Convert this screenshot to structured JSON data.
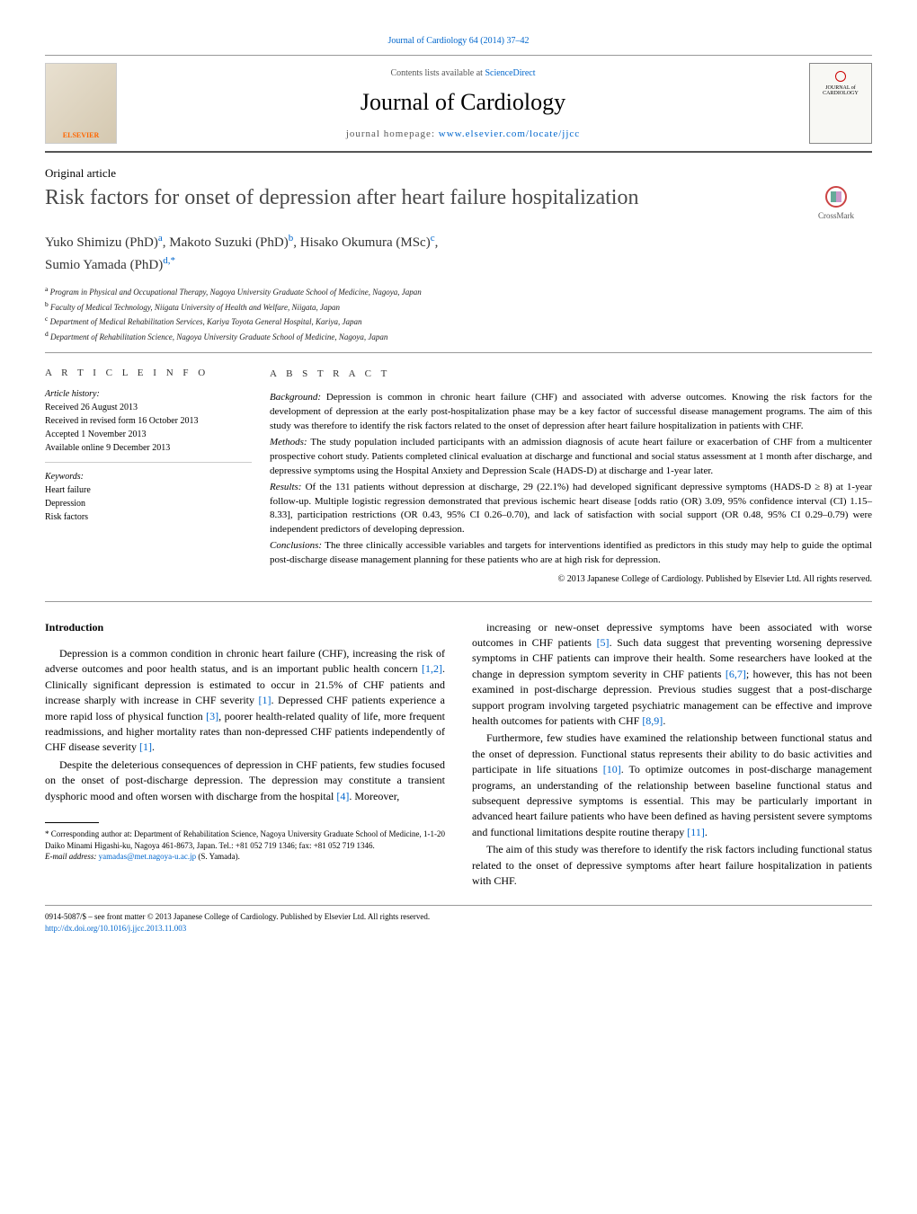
{
  "top_link": "Journal of Cardiology 64 (2014) 37–42",
  "header": {
    "publisher_logo": "ELSEVIER",
    "contents_prefix": "Contents lists available at ",
    "contents_link": "ScienceDirect",
    "journal_name": "Journal of Cardiology",
    "homepage_prefix": "journal homepage: ",
    "homepage_link": "www.elsevier.com/locate/jjcc",
    "cover_text": "JOURNAL of CARDIOLOGY"
  },
  "article_type": "Original article",
  "title": "Risk factors for onset of depression after heart failure hospitalization",
  "crossmark": "CrossMark",
  "authors_html": "Yuko Shimizu (PhD)<sup>a</sup>, Makoto Suzuki (PhD)<sup>b</sup>, Hisako Okumura (MSc)<sup>c</sup>,<br>Sumio Yamada (PhD)<sup>d,*</sup>",
  "affiliations": [
    "a Program in Physical and Occupational Therapy, Nagoya University Graduate School of Medicine, Nagoya, Japan",
    "b Faculty of Medical Technology, Niigata University of Health and Welfare, Niigata, Japan",
    "c Department of Medical Rehabilitation Services, Kariya Toyota General Hospital, Kariya, Japan",
    "d Department of Rehabilitation Science, Nagoya University Graduate School of Medicine, Nagoya, Japan"
  ],
  "info": {
    "heading": "A R T I C L E   I N F O",
    "history_label": "Article history:",
    "history": [
      "Received 26 August 2013",
      "Received in revised form 16 October 2013",
      "Accepted 1 November 2013",
      "Available online 9 December 2013"
    ],
    "keywords_label": "Keywords:",
    "keywords": [
      "Heart failure",
      "Depression",
      "Risk factors"
    ]
  },
  "abstract": {
    "heading": "A B S T R A C T",
    "sections": [
      {
        "label": "Background:",
        "text": " Depression is common in chronic heart failure (CHF) and associated with adverse outcomes. Knowing the risk factors for the development of depression at the early post-hospitalization phase may be a key factor of successful disease management programs. The aim of this study was therefore to identify the risk factors related to the onset of depression after heart failure hospitalization in patients with CHF."
      },
      {
        "label": "Methods:",
        "text": " The study population included participants with an admission diagnosis of acute heart failure or exacerbation of CHF from a multicenter prospective cohort study. Patients completed clinical evaluation at discharge and functional and social status assessment at 1 month after discharge, and depressive symptoms using the Hospital Anxiety and Depression Scale (HADS-D) at discharge and 1-year later."
      },
      {
        "label": "Results:",
        "text": " Of the 131 patients without depression at discharge, 29 (22.1%) had developed significant depressive symptoms (HADS-D ≥ 8) at 1-year follow-up. Multiple logistic regression demonstrated that previous ischemic heart disease [odds ratio (OR) 3.09, 95% confidence interval (CI) 1.15–8.33], participation restrictions (OR 0.43, 95% CI 0.26–0.70), and lack of satisfaction with social support (OR 0.48, 95% CI 0.29–0.79) were independent predictors of developing depression."
      },
      {
        "label": "Conclusions:",
        "text": " The three clinically accessible variables and targets for interventions identified as predictors in this study may help to guide the optimal post-discharge disease management planning for these patients who are at high risk for depression."
      }
    ],
    "copyright": "© 2013 Japanese College of Cardiology. Published by Elsevier Ltd. All rights reserved."
  },
  "intro_heading": "Introduction",
  "body_left": [
    "Depression is a common condition in chronic heart failure (CHF), increasing the risk of adverse outcomes and poor health status, and is an important public health concern [1,2]. Clinically significant depression is estimated to occur in 21.5% of CHF patients and increase sharply with increase in CHF severity [1]. Depressed CHF patients experience a more rapid loss of physical function [3], poorer health-related quality of life, more frequent readmissions, and higher mortality rates than non-depressed CHF patients independently of CHF disease severity [1].",
    "Despite the deleterious consequences of depression in CHF patients, few studies focused on the onset of post-discharge depression. The depression may constitute a transient dysphoric mood and often worsen with discharge from the hospital [4]. Moreover,"
  ],
  "body_right": [
    "increasing or new-onset depressive symptoms have been associated with worse outcomes in CHF patients [5]. Such data suggest that preventing worsening depressive symptoms in CHF patients can improve their health. Some researchers have looked at the change in depression symptom severity in CHF patients [6,7]; however, this has not been examined in post-discharge depression. Previous studies suggest that a post-discharge support program involving targeted psychiatric management can be effective and improve health outcomes for patients with CHF [8,9].",
    "Furthermore, few studies have examined the relationship between functional status and the onset of depression. Functional status represents their ability to do basic activities and participate in life situations [10]. To optimize outcomes in post-discharge management programs, an understanding of the relationship between baseline functional status and subsequent depressive symptoms is essential. This may be particularly important in advanced heart failure patients who have been defined as having persistent severe symptoms and functional limitations despite routine therapy [11].",
    "The aim of this study was therefore to identify the risk factors including functional status related to the onset of depressive symptoms after heart failure hospitalization in patients with CHF."
  ],
  "footnote": {
    "corr": "* Corresponding author at: Department of Rehabilitation Science, Nagoya University Graduate School of Medicine, 1-1-20 Daiko Minami Higashi-ku, Nagoya 461-8673, Japan. Tel.: +81 052 719 1346; fax: +81 052 719 1346.",
    "email_label": "E-mail address: ",
    "email": "yamadas@met.nagoya-u.ac.jp",
    "email_suffix": " (S. Yamada)."
  },
  "bottom": {
    "issn": "0914-5087/$ – see front matter © 2013 Japanese College of Cardiology. Published by Elsevier Ltd. All rights reserved.",
    "doi": "http://dx.doi.org/10.1016/j.jjcc.2013.11.003"
  },
  "citation_refs": [
    "[1,2]",
    "[1]",
    "[3]",
    "[1]",
    "[4]",
    "[5]",
    "[6,7]",
    "[8,9]",
    "[10]",
    "[11]"
  ],
  "colors": {
    "link": "#0066cc",
    "title_gray": "#4a4a4a",
    "rule": "#999999"
  }
}
